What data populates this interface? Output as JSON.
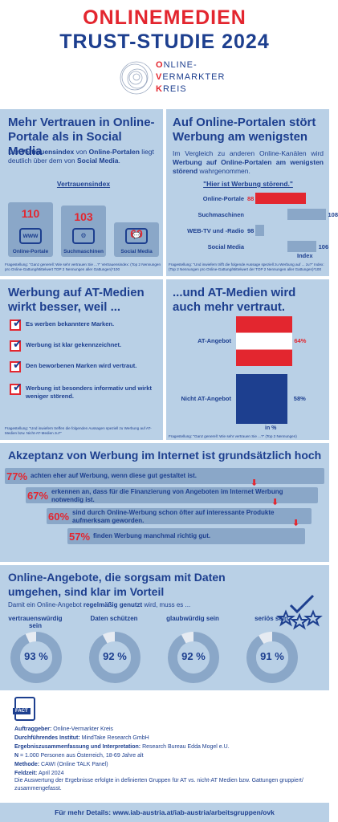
{
  "header": {
    "title_line1": "ONLINEMEDIEN",
    "title_line2": "TRUST-STUDIE 2024",
    "logo_line1": "NLINE-",
    "logo_line2": "ERMARKTER",
    "logo_line3": "REIS",
    "logo_letter1": "O",
    "logo_letter2": "V",
    "logo_letter3": "K"
  },
  "section1": {
    "title": "Mehr Vertrauen in Online-Portale als in Social Media",
    "desc_pre": "Der ",
    "desc_b1": "Vertrauensindex",
    "desc_mid": " von ",
    "desc_b2": "Online-Portalen",
    "desc_mid2": " liegt deutlich über dem von ",
    "desc_b3": "Social Media",
    "desc_end": ".",
    "chart_title": "Vertrauensindex",
    "footnote": "Fragestellung: \"Ganz generell: Wie sehr vertrauen Sie ...?\" Vertrauensindex: (Top 2 Nennungen pro Online-Gattung/Mittelwert TOP 2 Nennungen aller Gattungen)*100"
  },
  "section2": {
    "title": "Auf Online-Portalen stört Werbung am wenigsten",
    "desc_pre": "Im Vergleich zu anderen Online-Kanälen wird ",
    "desc_b": "Werbung auf Online-Portalen am wenigsten störend",
    "desc_end": " wahrgenommen.",
    "chart_title": "\"Hier ist Werbung störend.\"",
    "axis_label": "Index",
    "footnote": "Fragestellung: \"Und inwiefern trifft die folgende Aussage speziell zu Werbung auf ... zu?\" Index: (Top 2 Nennungen pro Online-Gattung/Mittelwert der TOP 2 Nennungen aller Gattungen)*100"
  },
  "section3": {
    "title": "Werbung auf AT-Medien wirkt besser, weil ...",
    "items": [
      "Es werben bekanntere Marken.",
      "Werbung ist klar gekennzeichnet.",
      "Den beworbenen Marken wird vertraut.",
      "Werbung ist besonders informativ und wirkt weniger störend."
    ],
    "footnote": "Fragestellung: \"Und inwiefern treffen die folgenden Aussagen speziell zu Werbung auf AT-Medien bzw. Nicht-AT-Medien zu?\""
  },
  "section4": {
    "title": "...und AT-Medien wird auch mehr vertraut.",
    "unit_label": "in %",
    "footnote": "Fragestellung: \"Ganz generell: Wie sehr vertrauen Sie ...?\" (Top 2 Nennungen)"
  },
  "section5": {
    "title": "Akzeptanz von Werbung im Internet ist grundsätzlich hoch",
    "items": [
      {
        "pct": "77%",
        "text": "achten eher auf Werbung, wenn diese gut gestaltet ist."
      },
      {
        "pct": "67%",
        "text": "erkennen an, dass für die Finanzierung von Angeboten im Internet Werbung notwendig ist."
      },
      {
        "pct": "60%",
        "text": "sind durch Online-Werbung schon öfter auf interessante Produkte aufmerksam geworden."
      },
      {
        "pct": "57%",
        "text": "finden Werbung manchmal richtig gut."
      }
    ]
  },
  "section6": {
    "title": "Online-Angebote, die sorgsam mit Daten umgehen, sind klar im Vorteil",
    "desc_pre": "Damit ein Online-Angebot ",
    "desc_b": "regelmäßig genutzt",
    "desc_end": " wird, muss es ...",
    "donuts": [
      {
        "label": "vertrauenswürdig sein",
        "value": "93 %"
      },
      {
        "label": "Daten schützen",
        "value": "92 %"
      },
      {
        "label": "glaubwürdig sein",
        "value": "92 %"
      },
      {
        "label": "seriös sein",
        "value": "91 %"
      }
    ]
  },
  "facts": {
    "badge": "FACT",
    "lines": [
      {
        "k": "Auftraggeber:",
        "v": " Online-Vermarkter Kreis"
      },
      {
        "k": "Durchführendes Institut:",
        "v": " MindTake Research GmbH"
      },
      {
        "k": "Ergebniszusammenfassung und Interpretation:",
        "v": " Research Bureau Edda Mogel e.U."
      },
      {
        "k": "N",
        "v": " = 1.000 Personen aus Österreich, 18-69 Jahre alt"
      },
      {
        "k": "Methode:",
        "v": " CAWI (Online TALK Panel)"
      },
      {
        "k": "Feldzeit:",
        "v": " April 2024"
      }
    ],
    "note": "Die Auswertung der Ergebnisse erfolgte in definierten Gruppen für AT vs. nicht-AT Medien bzw. Gattungen gruppiert/ zusammengefasst."
  },
  "footer": {
    "text": "Für mehr Details: www.iab-austria.at/iab-austria/arbeitsgruppen/ovk"
  },
  "colors": {
    "red": "#e3262f",
    "navy": "#1d3f8f",
    "panel": "#b9d0e6",
    "bar": "#8aa7c8"
  },
  "chart_data": [
    {
      "type": "bar",
      "title": "Vertrauensindex",
      "categories": [
        "Online-Portale",
        "Suchmaschinen",
        "Social Media"
      ],
      "values": [
        110,
        103,
        69
      ]
    },
    {
      "type": "bar",
      "orientation": "horizontal",
      "title": "\"Hier ist Werbung störend.\"",
      "xlabel": "Index",
      "categories": [
        "Online-Portale",
        "Suchmaschinen",
        "WEB-TV und -Radio",
        "Social Media"
      ],
      "values": [
        88,
        108,
        98,
        106
      ]
    },
    {
      "type": "bar",
      "orientation": "horizontal",
      "categories": [
        "AT-Angebot",
        "Nicht AT-Angebot"
      ],
      "values": [
        64,
        58
      ],
      "value_labels": [
        "64%",
        "58%"
      ],
      "xlabel": "in %"
    },
    {
      "type": "bar",
      "orientation": "horizontal",
      "title": "Akzeptanz von Werbung im Internet ist grundsätzlich hoch",
      "values": [
        77,
        67,
        60,
        57
      ]
    },
    {
      "type": "pie",
      "categories": [
        "vertrauenswürdig sein",
        "Daten schützen",
        "glaubwürdig sein",
        "seriös sein"
      ],
      "values": [
        93,
        92,
        92,
        91
      ]
    }
  ]
}
